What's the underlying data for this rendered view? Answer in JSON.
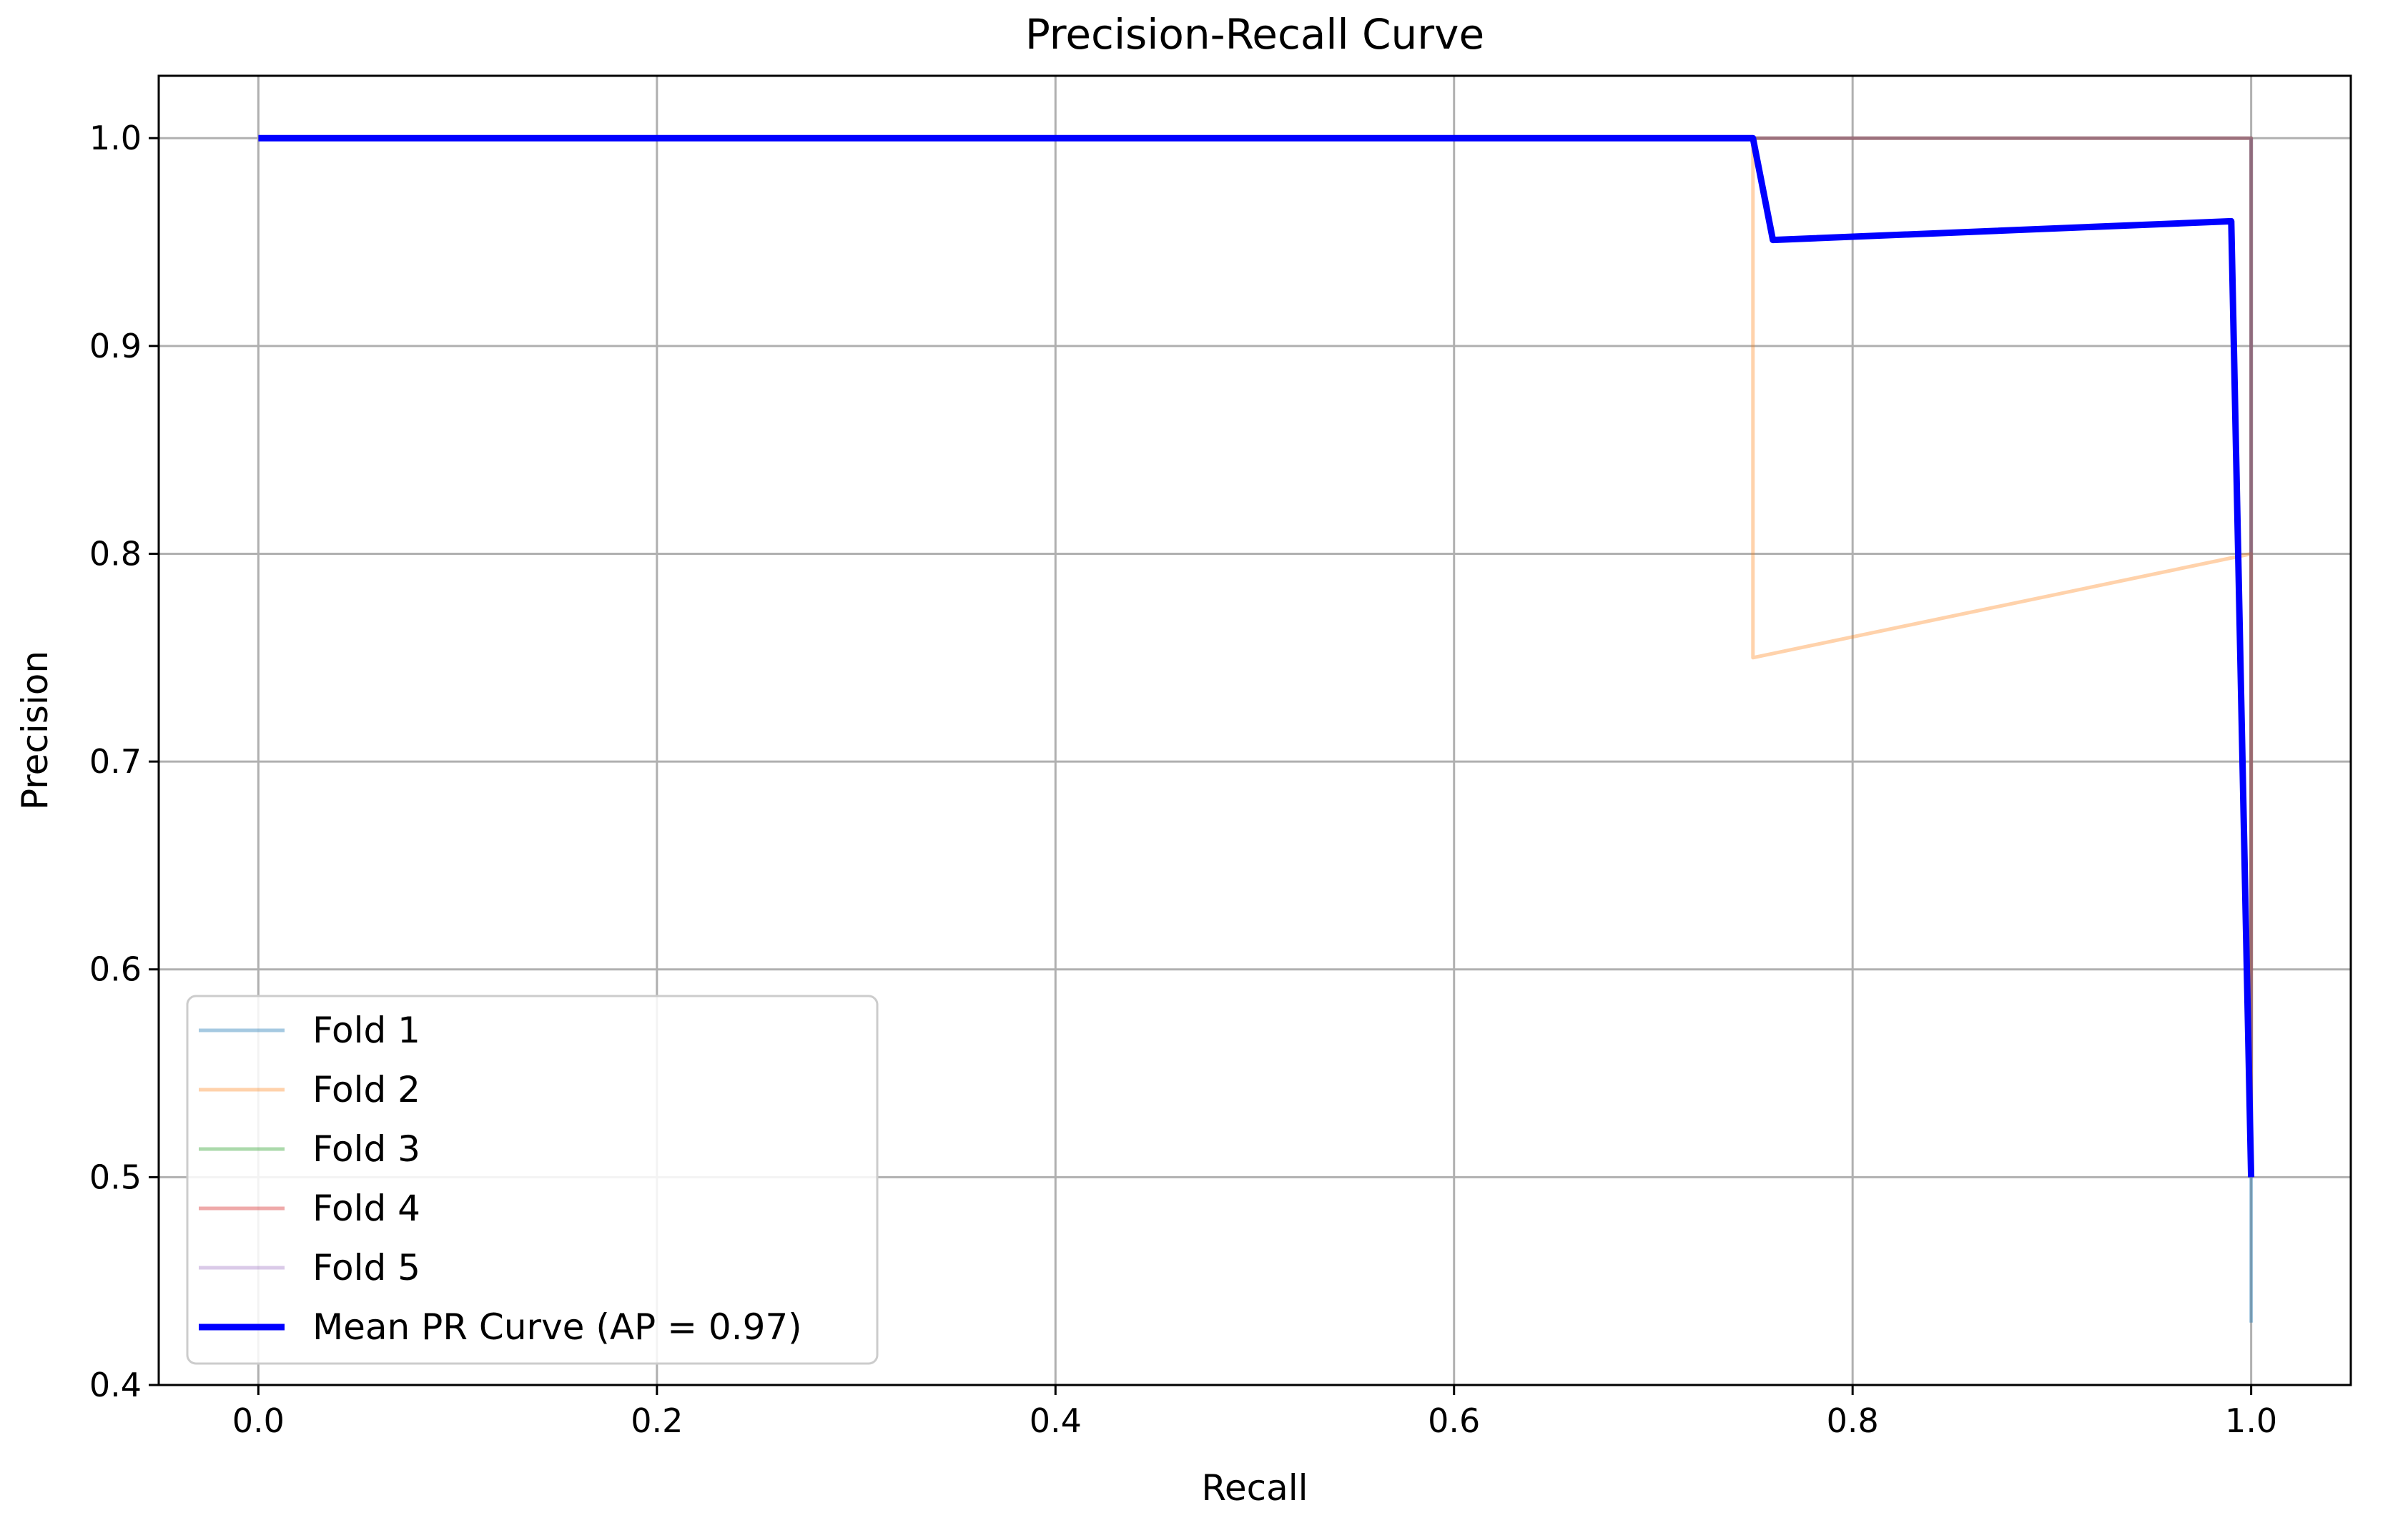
{
  "chart_data": {
    "type": "line",
    "title": "Precision-Recall Curve",
    "xlabel": "Recall",
    "ylabel": "Precision",
    "xlim": [
      -0.05,
      1.05
    ],
    "ylim": [
      0.4,
      1.03
    ],
    "x_ticks": [
      0.0,
      0.2,
      0.4,
      0.6,
      0.8,
      1.0
    ],
    "x_tick_labels": [
      "0.0",
      "0.2",
      "0.4",
      "0.6",
      "0.8",
      "1.0"
    ],
    "y_ticks": [
      0.4,
      0.5,
      0.6,
      0.7,
      0.8,
      0.9,
      1.0
    ],
    "y_tick_labels": [
      "0.4",
      "0.5",
      "0.6",
      "0.7",
      "0.8",
      "0.9",
      "1.0"
    ],
    "grid": true,
    "legend_position": "bottom-left",
    "series": [
      {
        "name": "Fold 1",
        "color": "#1f77b4",
        "opacity": 0.4,
        "x": [
          1.0,
          1.0,
          1.0
        ],
        "y": [
          1.0,
          0.5,
          0.43
        ]
      },
      {
        "name": "Fold 2",
        "color": "#ff7f0e",
        "opacity": 0.35,
        "x": [
          0.0,
          0.75,
          0.75,
          1.0,
          1.0,
          1.0
        ],
        "y": [
          1.0,
          1.0,
          0.75,
          0.8,
          0.8,
          0.5
        ]
      },
      {
        "name": "Fold 3",
        "color": "#2ca02c",
        "opacity": 0.4,
        "x": [
          0.0,
          1.0,
          1.0
        ],
        "y": [
          1.0,
          1.0,
          0.5
        ]
      },
      {
        "name": "Fold 4",
        "color": "#d62728",
        "opacity": 0.4,
        "x": [
          0.0,
          1.0,
          1.0
        ],
        "y": [
          1.0,
          1.0,
          0.5
        ]
      },
      {
        "name": "Fold 5",
        "color": "#9467bd",
        "opacity": 0.35,
        "x": [
          0.0,
          1.0,
          1.0
        ],
        "y": [
          1.0,
          1.0,
          0.5
        ]
      },
      {
        "name": "Mean PR Curve (AP = 0.97)",
        "color": "#0000ff",
        "opacity": 1.0,
        "x": [
          0.0,
          0.75,
          0.76,
          0.99,
          1.0
        ],
        "y": [
          1.0,
          1.0,
          0.951,
          0.96,
          0.5
        ]
      }
    ]
  }
}
